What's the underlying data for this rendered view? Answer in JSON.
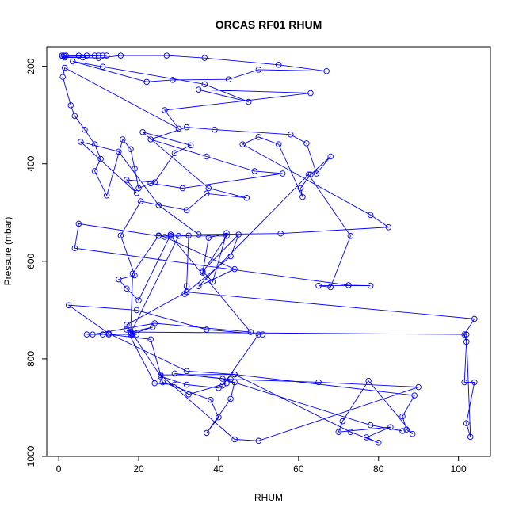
{
  "chart_data": {
    "type": "line",
    "title": "ORCAS RF01 RHUM",
    "xlabel": "RHUM",
    "ylabel": "Pressure (mbar)",
    "xlim": [
      -3,
      108
    ],
    "ylim": [
      1000,
      160
    ],
    "y_reversed": true,
    "xticks": [
      0,
      20,
      40,
      60,
      80,
      100
    ],
    "yticks": [
      200,
      400,
      600,
      800,
      1000
    ],
    "grid": false,
    "legend": "none",
    "color": "#0000ff",
    "series": [
      {
        "marker": "open-circle",
        "points": [
          [
            1.3,
            178
          ],
          [
            0.8,
            178
          ],
          [
            1.8,
            178
          ],
          [
            5,
            178
          ],
          [
            7,
            178
          ],
          [
            9,
            178
          ],
          [
            10,
            178
          ],
          [
            11,
            178
          ],
          [
            12,
            178
          ],
          [
            1,
            180
          ],
          [
            1.5,
            182
          ],
          [
            6,
            182
          ],
          [
            10,
            183
          ],
          [
            15.5,
            178
          ],
          [
            27,
            178
          ],
          [
            36.5,
            183
          ],
          [
            55,
            197
          ],
          [
            67,
            210
          ],
          [
            50,
            207
          ],
          [
            42.5,
            227
          ],
          [
            28.5,
            228
          ],
          [
            22,
            232
          ],
          [
            3.5,
            190
          ],
          [
            11,
            201
          ],
          [
            36.5,
            237
          ],
          [
            47.5,
            273
          ],
          [
            35,
            248
          ],
          [
            63,
            255
          ],
          [
            26.5,
            290
          ],
          [
            30,
            328
          ],
          [
            1.5,
            203
          ],
          [
            1,
            222
          ],
          [
            3,
            280
          ],
          [
            4,
            302
          ],
          [
            6.5,
            330
          ],
          [
            9,
            360
          ],
          [
            10.5,
            390
          ],
          [
            9,
            415
          ],
          [
            12,
            465
          ],
          [
            16,
            350
          ],
          [
            18,
            370
          ],
          [
            19,
            410
          ],
          [
            20,
            450
          ],
          [
            23,
            440
          ],
          [
            31,
            450
          ],
          [
            56,
            420
          ],
          [
            49,
            415
          ],
          [
            37,
            385
          ],
          [
            23,
            350
          ],
          [
            32,
            325
          ],
          [
            39,
            330
          ],
          [
            58,
            340
          ],
          [
            62,
            358
          ],
          [
            64.5,
            420
          ],
          [
            68,
            385
          ],
          [
            63,
            422
          ],
          [
            60.5,
            450
          ],
          [
            61,
            468
          ],
          [
            55,
            360
          ],
          [
            50,
            345
          ],
          [
            46,
            360
          ],
          [
            78,
            505
          ],
          [
            82.5,
            530
          ],
          [
            55.5,
            543
          ],
          [
            35,
            545
          ],
          [
            25,
            485
          ],
          [
            15,
            375
          ],
          [
            5.5,
            355
          ],
          [
            19.5,
            460
          ],
          [
            17,
            433
          ],
          [
            24,
            438
          ],
          [
            29,
            378
          ],
          [
            33,
            362
          ],
          [
            21,
            335
          ],
          [
            37.5,
            450
          ],
          [
            47,
            470
          ],
          [
            37,
            461
          ],
          [
            32,
            495
          ],
          [
            20.5,
            477
          ],
          [
            15.5,
            547
          ],
          [
            19,
            629
          ],
          [
            15,
            637
          ],
          [
            17,
            656
          ],
          [
            20,
            680
          ],
          [
            28,
            545
          ],
          [
            32.5,
            547
          ],
          [
            32,
            651
          ],
          [
            31.5,
            667
          ],
          [
            43,
            590
          ],
          [
            45,
            545
          ],
          [
            36,
            620
          ],
          [
            38.5,
            642
          ],
          [
            42,
            542
          ],
          [
            37.5,
            552
          ],
          [
            36,
            623
          ],
          [
            42,
            548
          ],
          [
            25,
            548
          ],
          [
            5,
            523
          ],
          [
            4,
            573
          ],
          [
            72.5,
            649
          ],
          [
            78,
            650
          ],
          [
            65,
            650
          ],
          [
            68,
            653
          ],
          [
            73,
            548
          ],
          [
            62.5,
            422
          ],
          [
            35,
            651
          ],
          [
            44,
            616
          ],
          [
            26.5,
            550
          ],
          [
            25,
            547
          ],
          [
            18.5,
            625
          ],
          [
            18,
            745
          ],
          [
            17,
            730
          ],
          [
            32,
            663
          ],
          [
            104,
            718
          ],
          [
            101.5,
            750
          ],
          [
            102,
            765
          ],
          [
            101.5,
            848
          ],
          [
            104,
            848
          ],
          [
            102,
            932
          ],
          [
            103,
            960
          ],
          [
            102,
            750
          ],
          [
            18,
            745
          ],
          [
            23.5,
            735
          ],
          [
            18,
            750
          ],
          [
            7,
            750
          ],
          [
            11,
            750
          ],
          [
            19.5,
            750
          ],
          [
            18,
            747
          ],
          [
            30,
            548
          ],
          [
            28,
            548
          ],
          [
            48,
            745
          ],
          [
            24,
            727
          ],
          [
            8.5,
            750
          ],
          [
            12.5,
            750
          ],
          [
            23,
            760
          ],
          [
            26,
            848
          ],
          [
            38,
            884
          ],
          [
            40,
            920
          ],
          [
            37,
            952
          ],
          [
            43,
            882
          ],
          [
            44,
            848
          ],
          [
            42,
            850
          ],
          [
            32.5,
            873
          ],
          [
            29,
            853
          ],
          [
            24,
            850
          ],
          [
            17,
            740
          ],
          [
            18.5,
            749
          ],
          [
            25.5,
            836
          ],
          [
            32,
            853
          ],
          [
            40,
            860
          ],
          [
            41,
            855
          ],
          [
            50,
            750
          ],
          [
            51,
            750
          ],
          [
            37,
            740
          ],
          [
            19.5,
            700
          ],
          [
            2.5,
            690
          ],
          [
            12.5,
            748
          ],
          [
            32,
            825
          ],
          [
            44,
            832
          ],
          [
            89,
            875
          ],
          [
            86,
            918
          ],
          [
            87,
            945
          ],
          [
            88.5,
            954
          ],
          [
            77.5,
            845
          ],
          [
            71,
            928
          ],
          [
            70,
            950
          ],
          [
            83,
            940
          ],
          [
            77,
            961
          ],
          [
            80,
            972
          ],
          [
            73,
            950
          ],
          [
            44,
            832
          ],
          [
            25.5,
            833
          ],
          [
            44,
            965
          ],
          [
            50,
            968
          ],
          [
            90,
            858
          ],
          [
            65,
            848
          ],
          [
            43,
            842
          ],
          [
            29,
            830
          ],
          [
            41,
            841
          ],
          [
            78,
            936
          ],
          [
            86,
            948
          ]
        ]
      }
    ]
  }
}
